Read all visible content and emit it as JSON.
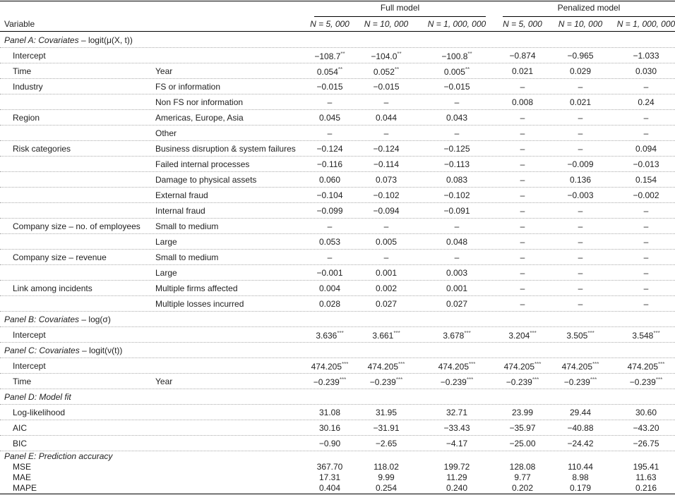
{
  "header": {
    "variable": "Variable",
    "groups": [
      "Full model",
      "Penalized model"
    ],
    "columns": [
      "N = 5, 000",
      "N = 10, 000",
      "N = 1, 000, 000",
      "N = 5, 000",
      "N = 10, 000",
      "N = 1, 000, 000"
    ]
  },
  "panels": [
    {
      "label": "Panel A: Covariates",
      "expr": "– logit(μ(X, t))",
      "rows": [
        {
          "variable": "Intercept",
          "cells": [
            {
              "text": "−108.7",
              "sig": "**"
            },
            {
              "text": "−104.0",
              "sig": "**"
            },
            {
              "text": "−100.8",
              "sig": "**"
            },
            "−0.874",
            "−0.965",
            "−1.033"
          ]
        },
        {
          "variable": "Time",
          "level": "Year",
          "cells": [
            {
              "text": "0.054",
              "sig": "**"
            },
            {
              "text": "0.052",
              "sig": "**"
            },
            {
              "text": "0.005",
              "sig": "**"
            },
            "0.021",
            "0.029",
            "0.030"
          ]
        },
        {
          "variable": "Industry",
          "level": "FS or information",
          "cells": [
            "−0.015",
            "−0.015",
            "−0.015",
            "–",
            "–",
            "–"
          ]
        },
        {
          "level": "Non FS nor information",
          "cells": [
            "–",
            "–",
            "–",
            "0.008",
            "0.021",
            "0.24"
          ]
        },
        {
          "variable": "Region",
          "level": "Americas, Europe, Asia",
          "cells": [
            "0.045",
            "0.044",
            "0.043",
            "–",
            "–",
            "–"
          ]
        },
        {
          "level": "Other",
          "cells": [
            "–",
            "–",
            "–",
            "–",
            "–",
            "–"
          ]
        },
        {
          "variable": "Risk categories",
          "level": "Business disruption & system failures",
          "cells": [
            "−0.124",
            "−0.124",
            "−0.125",
            "–",
            "–",
            "0.094"
          ]
        },
        {
          "level": "Failed internal processes",
          "cells": [
            "−0.116",
            "−0.114",
            "−0.113",
            "–",
            "−0.009",
            "−0.013"
          ]
        },
        {
          "level": "Damage to physical assets",
          "cells": [
            "0.060",
            "0.073",
            "0.083",
            "–",
            "0.136",
            "0.154"
          ]
        },
        {
          "level": "External fraud",
          "cells": [
            "−0.104",
            "−0.102",
            "−0.102",
            "–",
            "−0.003",
            "−0.002"
          ]
        },
        {
          "level": "Internal fraud",
          "cells": [
            "−0.099",
            "−0.094",
            "−0.091",
            "–",
            "–",
            "–"
          ]
        },
        {
          "variable": "Company size – no. of employees",
          "level": "Small to medium",
          "cells": [
            "–",
            "–",
            "–",
            "–",
            "–",
            "–"
          ]
        },
        {
          "level": "Large",
          "cells": [
            "0.053",
            "0.005",
            "0.048",
            "–",
            "–",
            "–"
          ]
        },
        {
          "variable": "Company size – revenue",
          "level": "Small to medium",
          "cells": [
            "–",
            "–",
            "–",
            "–",
            "–",
            "–"
          ]
        },
        {
          "level": "Large",
          "cells": [
            "−0.001",
            "0.001",
            "0.003",
            "–",
            "–",
            "–"
          ]
        },
        {
          "variable": "Link among incidents",
          "level": "Multiple firms affected",
          "cells": [
            "0.004",
            "0.002",
            "0.001",
            "–",
            "–",
            "–"
          ]
        },
        {
          "level": "Multiple losses incurred",
          "cells": [
            "0.028",
            "0.027",
            "0.027",
            "–",
            "–",
            "–"
          ]
        }
      ]
    },
    {
      "label": "Panel B: Covariates",
      "expr": "– log(σ)",
      "rows": [
        {
          "variable": "Intercept",
          "cells": [
            {
              "text": "3.636",
              "sig": "***"
            },
            {
              "text": "3.661",
              "sig": "***"
            },
            {
              "text": "3.678",
              "sig": "***"
            },
            {
              "text": "3.204",
              "sig": "***"
            },
            {
              "text": "3.505",
              "sig": "***"
            },
            {
              "text": "3.548",
              "sig": "***"
            }
          ]
        }
      ]
    },
    {
      "label": "Panel C: Covariates",
      "expr": "– logit(ν(t))",
      "rows": [
        {
          "variable": "Intercept",
          "cells": [
            {
              "text": "474.205",
              "sig": "***"
            },
            {
              "text": "474.205",
              "sig": "***"
            },
            {
              "text": "474.205",
              "sig": "***"
            },
            {
              "text": "474.205",
              "sig": "***"
            },
            {
              "text": "474.205",
              "sig": "***"
            },
            {
              "text": "474.205",
              "sig": "***"
            }
          ]
        },
        {
          "variable": "Time",
          "level": "Year",
          "cells": [
            {
              "text": "−0.239",
              "sig": "***"
            },
            {
              "text": "−0.239",
              "sig": "***"
            },
            {
              "text": "−0.239",
              "sig": "***"
            },
            {
              "text": "−0.239",
              "sig": "***"
            },
            {
              "text": "−0.239",
              "sig": "***"
            },
            {
              "text": "−0.239",
              "sig": "***"
            }
          ]
        }
      ]
    },
    {
      "label": "Panel D: Model fit",
      "rows": [
        {
          "variable": "Log-likelihood",
          "cells": [
            "31.08",
            "31.95",
            "32.71",
            "23.99",
            "29.44",
            "30.60"
          ]
        },
        {
          "variable": "AIC",
          "cells": [
            "30.16",
            "−31.91",
            "−33.43",
            "−35.97",
            "−40.88",
            "−43.20"
          ]
        },
        {
          "variable": "BIC",
          "cells": [
            "−0.90",
            "−2.65",
            "−4.17",
            "−25.00",
            "−24.42",
            "−26.75"
          ]
        }
      ]
    },
    {
      "label": "Panel E: Prediction accuracy",
      "rows": [
        {
          "variable": "MSE",
          "cells": [
            "367.70",
            "118.02",
            "199.72",
            "128.08",
            "110.44",
            "195.41"
          ]
        },
        {
          "variable": "MAE",
          "cells": [
            "17.31",
            "9.99",
            "11.29",
            "9.77",
            "8.98",
            "11.63"
          ]
        },
        {
          "variable": "MAPE",
          "cells": [
            "0.404",
            "0.254",
            "0.240",
            "0.202",
            "0.179",
            "0.216"
          ]
        }
      ]
    }
  ]
}
